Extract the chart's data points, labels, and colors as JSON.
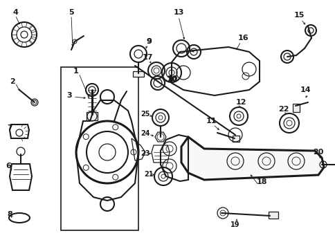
{
  "bg": "#ffffff",
  "lc": "#1a1a1a",
  "fig_w": 4.85,
  "fig_h": 3.47,
  "dpi": 100,
  "xmin": 0,
  "xmax": 485,
  "ymin": 0,
  "ymax": 347
}
